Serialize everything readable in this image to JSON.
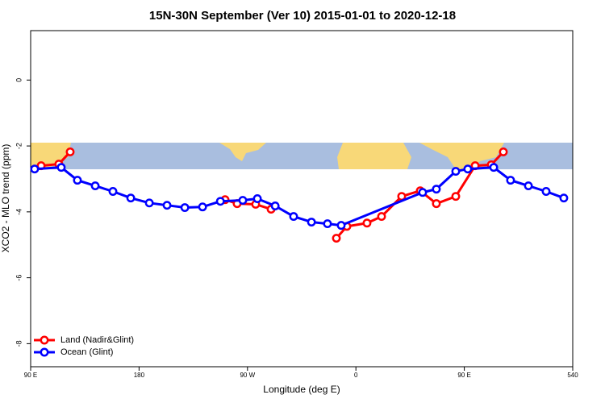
{
  "chart_data": {
    "type": "line",
    "title": "15N-30N September (Ver 10)   2015-01-01 to 2020-12-18",
    "x_label": "Longitude (deg E)",
    "y_label": "XCO2 - MLO trend (ppm)",
    "xlim": [
      90,
      540
    ],
    "ylim": [
      -8.7,
      1.5
    ],
    "xticks": [
      {
        "value": 90,
        "label": "90 E"
      },
      180,
      {
        "value": 270,
        "label": "90 W"
      },
      {
        "value": 360,
        "label": "0"
      },
      {
        "value": 450,
        "label": "90 E"
      },
      540
    ],
    "yticks": [
      0,
      -2,
      -4,
      -6,
      -8
    ],
    "legend": "bottom-left",
    "series": [
      {
        "name": "Land (Nadir&Glint)",
        "color": "#ff0000",
        "x": [
          98.7,
          113.4,
          122.8,
          null,
          251.4,
          261.4,
          276.8,
          289.6,
          null,
          343.8,
          352.5,
          369.2,
          381.3,
          398.0,
          413.4,
          426.8,
          442.9,
          459.0,
          472.4,
          482.4
        ],
        "values": [
          -2.6,
          -2.55,
          -2.18,
          null,
          -3.63,
          -3.75,
          -3.77,
          -3.92,
          null,
          -4.8,
          -4.44,
          -4.34,
          -4.14,
          -3.53,
          -3.36,
          -3.75,
          -3.53,
          -2.6,
          -2.57,
          -2.18
        ]
      },
      {
        "name": "Ocean (Glint)",
        "color": "#0000ff",
        "x": [
          93.3,
          115.4,
          128.8,
          143.6,
          158.3,
          173.1,
          188.5,
          203.2,
          218.0,
          232.7,
          247.5,
          266.1,
          278.2,
          293.0,
          308.3,
          323.1,
          336.4,
          347.8,
          415.4,
          426.8,
          442.9,
          452.9,
          474.4,
          488.4,
          503.2,
          517.9,
          532.6
        ],
        "values": [
          -2.7,
          -2.65,
          -3.04,
          -3.21,
          -3.38,
          -3.58,
          -3.73,
          -3.8,
          -3.87,
          -3.85,
          -3.68,
          -3.65,
          -3.6,
          -3.82,
          -4.14,
          -4.31,
          -4.36,
          -4.41,
          -3.41,
          -3.31,
          -2.77,
          -2.7,
          -2.65,
          -3.04,
          -3.21,
          -3.38,
          -3.58
        ]
      }
    ]
  }
}
